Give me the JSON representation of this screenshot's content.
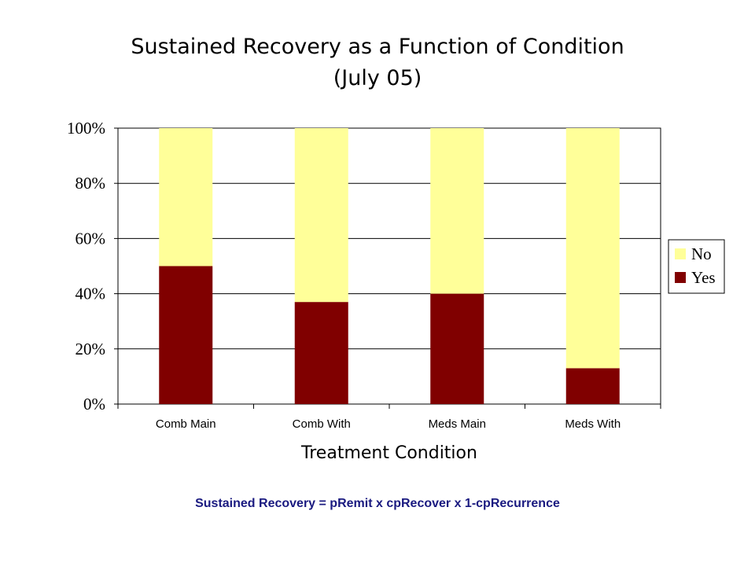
{
  "chart_data": {
    "type": "bar",
    "stacked": true,
    "percent_stacked": true,
    "title": "Sustained Recovery as a Function of Condition",
    "subtitle": "(July 05)",
    "xlabel": "Treatment Condition",
    "ylabel": "",
    "categories": [
      "Comb Main",
      "Comb With",
      "Meds Main",
      "Meds With"
    ],
    "series": [
      {
        "name": "Yes",
        "values": [
          50,
          37,
          40,
          13
        ],
        "color": "#800000"
      },
      {
        "name": "No",
        "values": [
          50,
          63,
          60,
          87
        ],
        "color": "#ffff99"
      }
    ],
    "ylim": [
      0,
      100
    ],
    "yticks": [
      "0%",
      "20%",
      "40%",
      "60%",
      "80%",
      "100%"
    ],
    "grid": true,
    "legend": {
      "position": "right",
      "entries": [
        "No",
        "Yes"
      ]
    },
    "note": "Sustained Recovery = pRemit x cpRecover x 1-cpRecurrence"
  }
}
